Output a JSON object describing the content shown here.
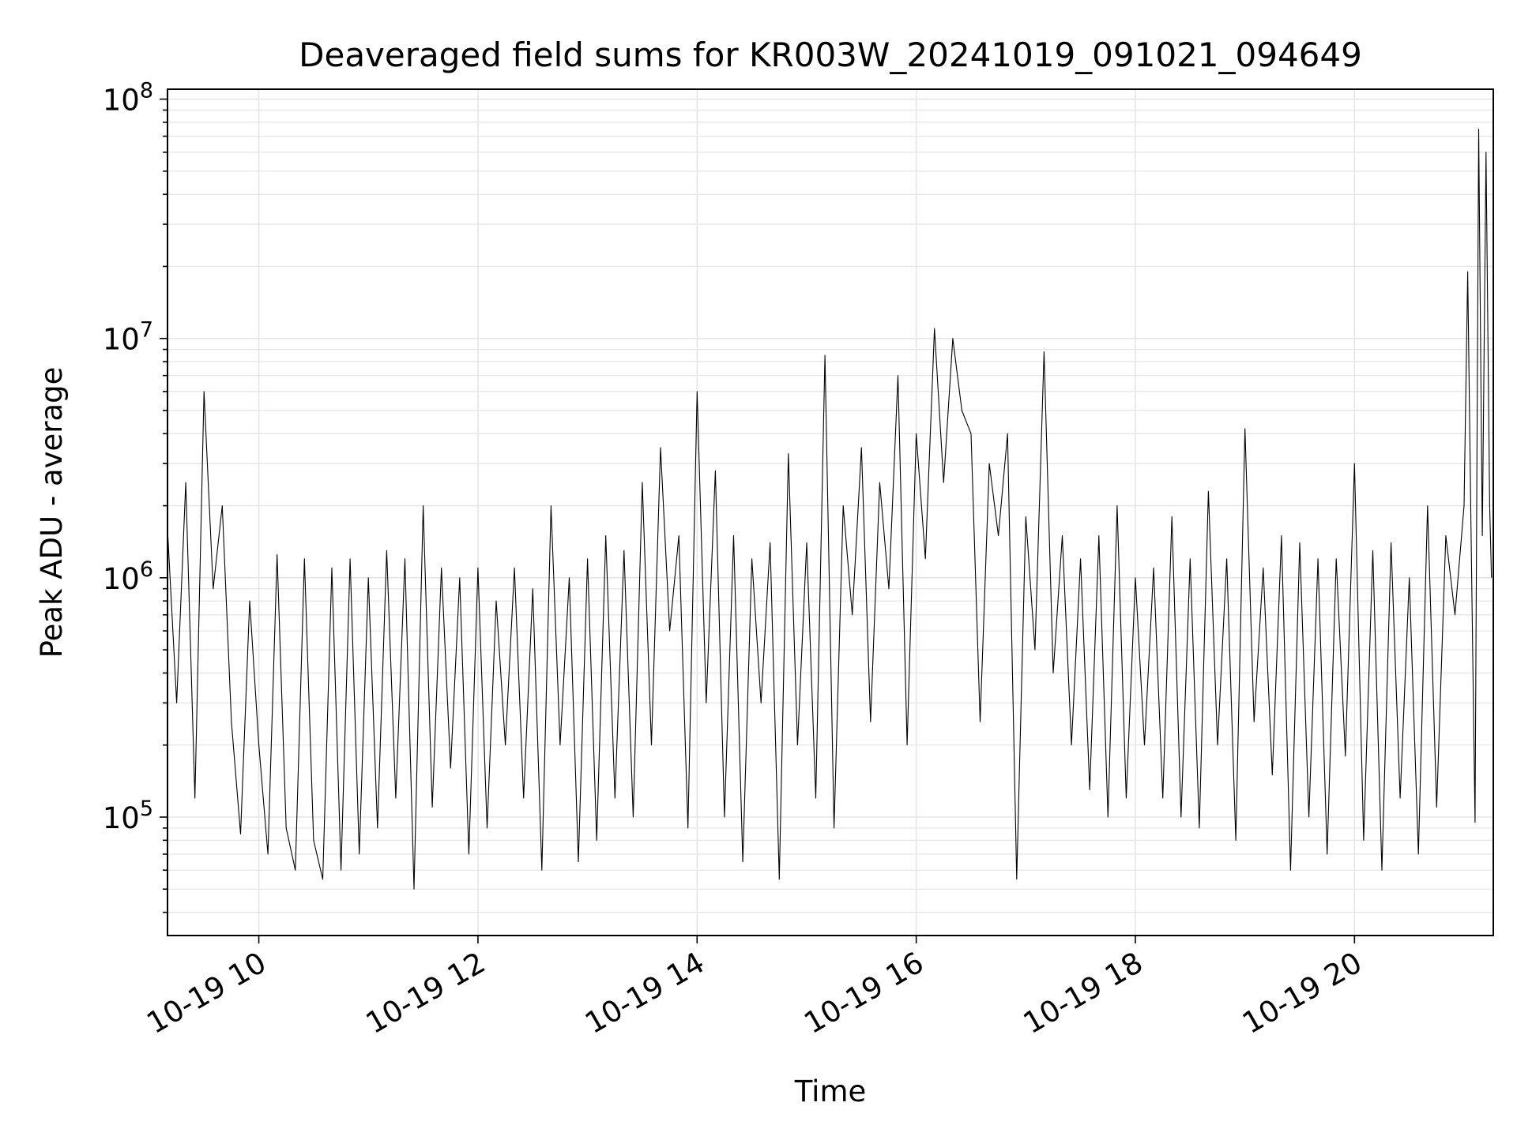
{
  "chart_data": {
    "type": "line",
    "title": "Deaveraged field sums for KR003W_20241019_091021_094649",
    "xlabel": "Time",
    "ylabel": "Peak ADU - average",
    "yscale": "log",
    "ylim": [
      32000,
      110000000
    ],
    "xlim": [
      "2024-10-19T09:10:00",
      "2024-10-19T21:16:00"
    ],
    "x_tick_values": [
      "2024-10-19T10:00",
      "2024-10-19T12:00",
      "2024-10-19T14:00",
      "2024-10-19T16:00",
      "2024-10-19T18:00",
      "2024-10-19T20:00"
    ],
    "x_tick_labels": [
      "10-19 10",
      "10-19 12",
      "10-19 14",
      "10-19 16",
      "10-19 18",
      "10-19 20"
    ],
    "y_tick_values": [
      100000,
      1000000,
      10000000,
      100000000
    ],
    "y_tick_labels": [
      {
        "base": "10",
        "exp": "5"
      },
      {
        "base": "10",
        "exp": "6"
      },
      {
        "base": "10",
        "exp": "7"
      },
      {
        "base": "10",
        "exp": "8"
      }
    ],
    "grid": true,
    "line_color": "#000000",
    "grid_color": "#e6e6e6",
    "series": [
      {
        "x": [
          "2024-10-19T09:10",
          "2024-10-19T09:15",
          "2024-10-19T09:20",
          "2024-10-19T09:25",
          "2024-10-19T09:30",
          "2024-10-19T09:35",
          "2024-10-19T09:40",
          "2024-10-19T09:45",
          "2024-10-19T09:50",
          "2024-10-19T09:55",
          "2024-10-19T10:00",
          "2024-10-19T10:05",
          "2024-10-19T10:10",
          "2024-10-19T10:15",
          "2024-10-19T10:20",
          "2024-10-19T10:25",
          "2024-10-19T10:30",
          "2024-10-19T10:35",
          "2024-10-19T10:40",
          "2024-10-19T10:45",
          "2024-10-19T10:50",
          "2024-10-19T10:55",
          "2024-10-19T11:00",
          "2024-10-19T11:05",
          "2024-10-19T11:10",
          "2024-10-19T11:15",
          "2024-10-19T11:20",
          "2024-10-19T11:25",
          "2024-10-19T11:30",
          "2024-10-19T11:35",
          "2024-10-19T11:40",
          "2024-10-19T11:45",
          "2024-10-19T11:50",
          "2024-10-19T11:55",
          "2024-10-19T12:00",
          "2024-10-19T12:05",
          "2024-10-19T12:10",
          "2024-10-19T12:15",
          "2024-10-19T12:20",
          "2024-10-19T12:25",
          "2024-10-19T12:30",
          "2024-10-19T12:35",
          "2024-10-19T12:40",
          "2024-10-19T12:45",
          "2024-10-19T12:50",
          "2024-10-19T12:55",
          "2024-10-19T13:00",
          "2024-10-19T13:05",
          "2024-10-19T13:10",
          "2024-10-19T13:15",
          "2024-10-19T13:20",
          "2024-10-19T13:25",
          "2024-10-19T13:30",
          "2024-10-19T13:35",
          "2024-10-19T13:40",
          "2024-10-19T13:45",
          "2024-10-19T13:50",
          "2024-10-19T13:55",
          "2024-10-19T14:00",
          "2024-10-19T14:05",
          "2024-10-19T14:10",
          "2024-10-19T14:15",
          "2024-10-19T14:20",
          "2024-10-19T14:25",
          "2024-10-19T14:30",
          "2024-10-19T14:35",
          "2024-10-19T14:40",
          "2024-10-19T14:45",
          "2024-10-19T14:50",
          "2024-10-19T14:55",
          "2024-10-19T15:00",
          "2024-10-19T15:05",
          "2024-10-19T15:10",
          "2024-10-19T15:15",
          "2024-10-19T15:20",
          "2024-10-19T15:25",
          "2024-10-19T15:30",
          "2024-10-19T15:35",
          "2024-10-19T15:40",
          "2024-10-19T15:45",
          "2024-10-19T15:50",
          "2024-10-19T15:55",
          "2024-10-19T16:00",
          "2024-10-19T16:05",
          "2024-10-19T16:10",
          "2024-10-19T16:15",
          "2024-10-19T16:20",
          "2024-10-19T16:25",
          "2024-10-19T16:30",
          "2024-10-19T16:35",
          "2024-10-19T16:40",
          "2024-10-19T16:45",
          "2024-10-19T16:50",
          "2024-10-19T16:55",
          "2024-10-19T17:00",
          "2024-10-19T17:05",
          "2024-10-19T17:10",
          "2024-10-19T17:15",
          "2024-10-19T17:20",
          "2024-10-19T17:25",
          "2024-10-19T17:30",
          "2024-10-19T17:35",
          "2024-10-19T17:40",
          "2024-10-19T17:45",
          "2024-10-19T17:50",
          "2024-10-19T17:55",
          "2024-10-19T18:00",
          "2024-10-19T18:05",
          "2024-10-19T18:10",
          "2024-10-19T18:15",
          "2024-10-19T18:20",
          "2024-10-19T18:25",
          "2024-10-19T18:30",
          "2024-10-19T18:35",
          "2024-10-19T18:40",
          "2024-10-19T18:45",
          "2024-10-19T18:50",
          "2024-10-19T18:55",
          "2024-10-19T19:00",
          "2024-10-19T19:05",
          "2024-10-19T19:10",
          "2024-10-19T19:15",
          "2024-10-19T19:20",
          "2024-10-19T19:25",
          "2024-10-19T19:30",
          "2024-10-19T19:35",
          "2024-10-19T19:40",
          "2024-10-19T19:45",
          "2024-10-19T19:50",
          "2024-10-19T19:55",
          "2024-10-19T20:00",
          "2024-10-19T20:05",
          "2024-10-19T20:10",
          "2024-10-19T20:15",
          "2024-10-19T20:20",
          "2024-10-19T20:25",
          "2024-10-19T20:30",
          "2024-10-19T20:35",
          "2024-10-19T20:40",
          "2024-10-19T20:45",
          "2024-10-19T20:50",
          "2024-10-19T20:55",
          "2024-10-19T21:00",
          "2024-10-19T21:02",
          "2024-10-19T21:04",
          "2024-10-19T21:06",
          "2024-10-19T21:08",
          "2024-10-19T21:10",
          "2024-10-19T21:12",
          "2024-10-19T21:14",
          "2024-10-19T21:15"
        ],
        "y": [
          1600000,
          300000,
          2500000,
          120000,
          6000000,
          900000,
          2000000,
          250000,
          85000,
          800000,
          200000,
          70000,
          1250000,
          90000,
          60000,
          1200000,
          80000,
          55000,
          1100000,
          60000,
          1200000,
          70000,
          1000000,
          90000,
          1300000,
          120000,
          1200000,
          50000,
          2000000,
          110000,
          1100000,
          160000,
          1000000,
          70000,
          1100000,
          90000,
          800000,
          200000,
          1100000,
          120000,
          900000,
          60000,
          2000000,
          200000,
          1000000,
          65000,
          1200000,
          80000,
          1500000,
          120000,
          1300000,
          100000,
          2500000,
          200000,
          3500000,
          600000,
          1500000,
          90000,
          6000000,
          300000,
          2800000,
          100000,
          1500000,
          65000,
          1200000,
          300000,
          1400000,
          55000,
          3300000,
          200000,
          1400000,
          120000,
          8500000,
          90000,
          2000000,
          700000,
          3500000,
          250000,
          2500000,
          900000,
          7000000,
          200000,
          4000000,
          1200000,
          11000000,
          2500000,
          10000000,
          5000000,
          4000000,
          250000,
          3000000,
          1500000,
          4000000,
          55000,
          1800000,
          500000,
          8800000,
          400000,
          1500000,
          200000,
          1200000,
          130000,
          1500000,
          100000,
          2000000,
          120000,
          1000000,
          200000,
          1100000,
          120000,
          1800000,
          100000,
          1200000,
          90000,
          2300000,
          200000,
          1200000,
          80000,
          4200000,
          250000,
          1100000,
          150000,
          1500000,
          60000,
          1400000,
          100000,
          1200000,
          70000,
          1200000,
          180000,
          3000000,
          80000,
          1300000,
          60000,
          1400000,
          120000,
          1000000,
          70000,
          2000000,
          110000,
          1500000,
          700000,
          2000000,
          19000000,
          1200000,
          95000,
          75000000,
          1500000,
          60000000,
          2000000,
          1000000
        ]
      }
    ]
  }
}
